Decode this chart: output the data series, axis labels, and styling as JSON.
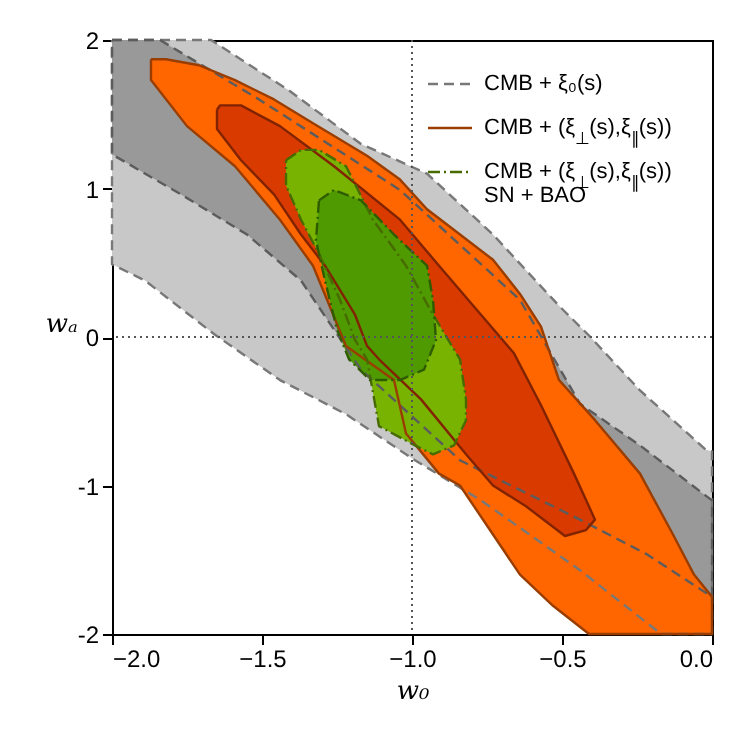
{
  "chart_data": {
    "type": "area",
    "xlabel": "w₀",
    "ylabel": "wₐ",
    "xlim": [
      -2,
      0
    ],
    "ylim": [
      -2,
      2
    ],
    "xticks": [
      {
        "value": -2,
        "label": "−2.0"
      },
      {
        "value": -1.5,
        "label": "−1.5"
      },
      {
        "value": -1,
        "label": "−1.0"
      },
      {
        "value": -0.5,
        "label": "−0.5"
      },
      {
        "value": 0,
        "label": "0.0"
      }
    ],
    "yticks": [
      -2,
      -1,
      0,
      1,
      2
    ],
    "grid": false,
    "legend": "top right",
    "ref_lines": [
      {
        "axis": "x",
        "value": -1,
        "line_style": "dotted",
        "color": "#555555"
      },
      {
        "axis": "y",
        "value": 0,
        "line_style": "dotted",
        "color": "#555555"
      }
    ],
    "series": [
      {
        "name": "CMB + ξ₀(s)",
        "color": "#c8c8c8",
        "line_style": "dashed",
        "x": [
          -2,
          -1.67,
          -1.41,
          -1.17,
          -0.95,
          -0.73,
          -0.51,
          -0.41,
          -0.24,
          -0.02,
          0,
          0,
          -0.17,
          -0.44,
          -0.77,
          -0.99,
          -1.22,
          -1.44,
          -1.66,
          -1.89,
          -2
        ],
        "values": [
          2,
          2,
          1.66,
          1.3,
          1.1,
          0.69,
          0.21,
          0.01,
          -0.36,
          -0.76,
          -0.77,
          -2,
          -2,
          -1.57,
          -1.1,
          -0.83,
          -0.52,
          -0.29,
          0.02,
          0.38,
          0.49
        ]
      },
      {
        "color": "#999999",
        "line_style": "dashed",
        "x": [
          -2,
          -1.84,
          -1.51,
          -1.04,
          -0.64,
          -0.44,
          -0.24,
          -0.02,
          0,
          0,
          -0.22,
          -0.44,
          -0.84,
          -1.17,
          -1.37,
          -1.55,
          -1.77,
          -2
        ],
        "values": [
          2,
          2,
          1.6,
          0.99,
          0.25,
          -0.45,
          -0.73,
          -1.07,
          -1.1,
          -1.75,
          -1.46,
          -1.23,
          -0.83,
          -0.22,
          0.38,
          0.69,
          0.96,
          1.23
        ]
      },
      {
        "name": "CMB + (ξ$_{⊥}$(s),ξ$_{∥}$(s))",
        "color": "#ff6600",
        "line_style": "solid",
        "x": [
          -1.87,
          -1.82,
          -1.71,
          -1.59,
          -1.46,
          -1.33,
          -1.15,
          -1.04,
          -0.95,
          -0.84,
          -0.73,
          -0.64,
          -0.57,
          -0.51,
          -0.39,
          -0.24,
          -0.13,
          -0.06,
          0,
          0,
          -0.41,
          -0.53,
          -0.64,
          -0.73,
          -0.84,
          -0.91,
          -1.02,
          -1.06,
          -1.22,
          -1.33,
          -1.44,
          -1.59,
          -1.75,
          -1.87
        ],
        "values": [
          1.87,
          1.87,
          1.83,
          1.73,
          1.6,
          1.44,
          1.22,
          1.06,
          0.86,
          0.69,
          0.52,
          0.29,
          0.07,
          -0.29,
          -0.56,
          -0.92,
          -1.33,
          -1.6,
          -1.75,
          -2,
          -2,
          -1.81,
          -1.6,
          -1.33,
          -1,
          -0.92,
          -0.65,
          -0.29,
          -0.06,
          0.48,
          0.79,
          1.15,
          1.42,
          1.73
        ]
      },
      {
        "color": "#d83a00",
        "line_style": "solid",
        "x": [
          -1.65,
          -1.64,
          -1.57,
          -1.44,
          -1.26,
          -1.04,
          -0.91,
          -0.77,
          -0.66,
          -0.57,
          -0.46,
          -0.39,
          -0.42,
          -0.49,
          -0.62,
          -0.73,
          -0.82,
          -0.97,
          -1.11,
          -1.15,
          -1.19,
          -1.29,
          -1.37,
          -1.46,
          -1.57,
          -1.65
        ],
        "values": [
          1.53,
          1.56,
          1.56,
          1.42,
          1.15,
          0.79,
          0.48,
          0.15,
          -0.11,
          -0.46,
          -0.92,
          -1.23,
          -1.3,
          -1.34,
          -1.14,
          -1,
          -0.79,
          -0.42,
          -0.15,
          -0.06,
          0.15,
          0.48,
          0.69,
          0.96,
          1.19,
          1.4
        ]
      },
      {
        "name": "CMB + (ξ$_{⊥}$(s),ξ$_{∥}$(s))\nSN + BAO",
        "color": "#77b300",
        "line_style": "dashdot",
        "x": [
          -1.42,
          -1.37,
          -1.31,
          -1.22,
          -1.13,
          -1.02,
          -0.93,
          -0.84,
          -0.82,
          -0.82,
          -0.86,
          -0.93,
          -0.99,
          -1.11,
          -1.15,
          -1.19,
          -1.24,
          -1.31,
          -1.37,
          -1.42
        ],
        "values": [
          1.19,
          1.26,
          1.26,
          1.15,
          0.79,
          0.48,
          0.15,
          -0.15,
          -0.42,
          -0.56,
          -0.73,
          -0.79,
          -0.73,
          -0.6,
          -0.15,
          -0.02,
          0.25,
          0.56,
          0.79,
          1.02
        ]
      },
      {
        "color": "#4f9a00",
        "line_style": "dashdot",
        "x": [
          -1.31,
          -1.26,
          -1.17,
          -1.06,
          -0.95,
          -0.93,
          -0.92,
          -0.96,
          -1.04,
          -1.14,
          -1.21,
          -1.25,
          -1.29,
          -1.32
        ],
        "values": [
          0.92,
          0.99,
          0.92,
          0.69,
          0.48,
          0.25,
          -0.02,
          -0.22,
          -0.29,
          -0.29,
          -0.15,
          0.05,
          0.38,
          0.65
        ]
      }
    ]
  }
}
